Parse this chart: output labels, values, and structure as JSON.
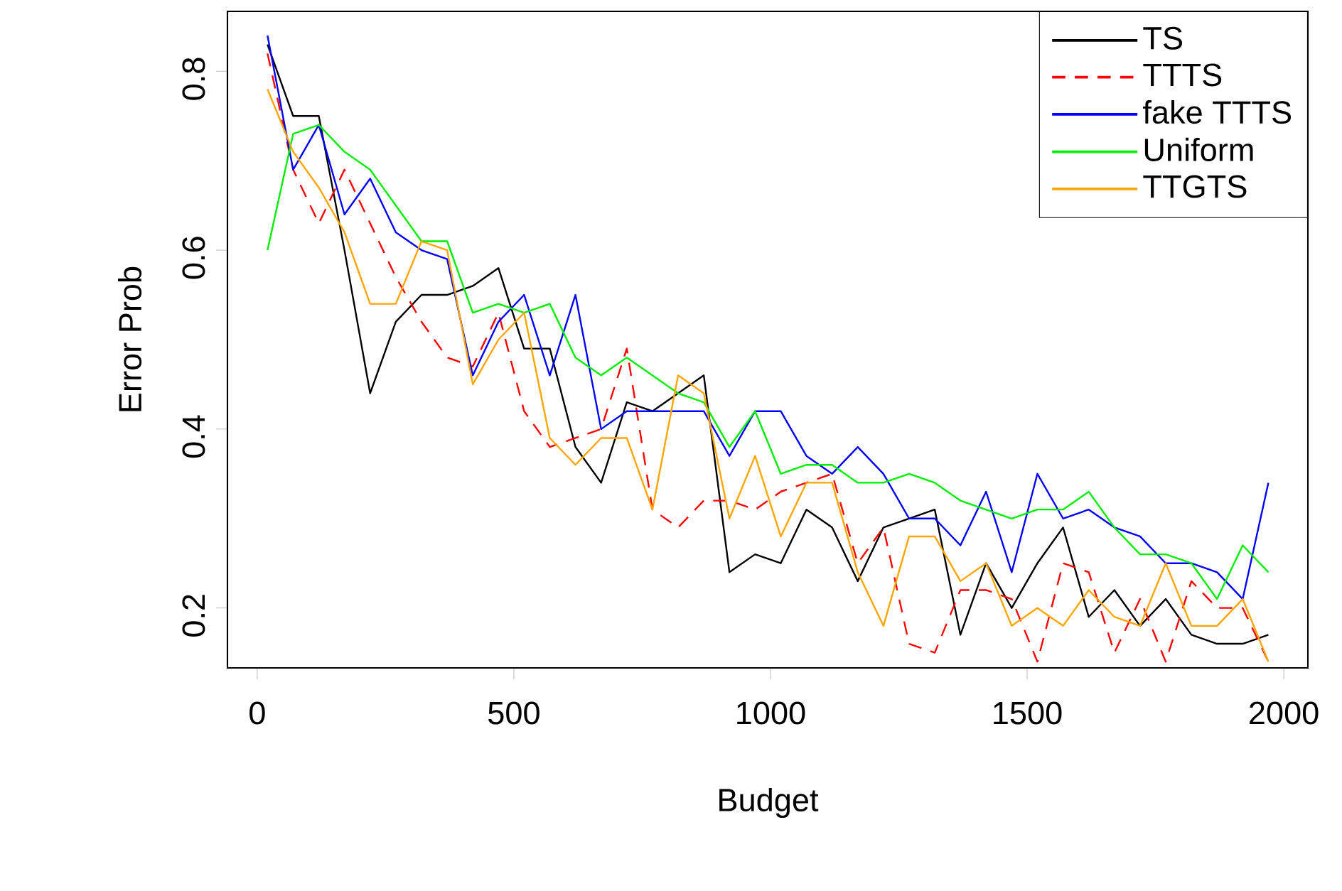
{
  "chart_data": {
    "type": "line",
    "xlabel": "Budget",
    "ylabel": "Error Prob",
    "x": [
      20,
      70,
      120,
      170,
      220,
      270,
      320,
      370,
      420,
      470,
      520,
      570,
      620,
      670,
      720,
      770,
      820,
      870,
      920,
      970,
      1020,
      1070,
      1120,
      1170,
      1220,
      1270,
      1320,
      1370,
      1420,
      1470,
      1520,
      1570,
      1620,
      1670,
      1720,
      1770,
      1820,
      1870,
      1920,
      1970
    ],
    "series": [
      {
        "name": "TS",
        "color": "#000000",
        "line_style": "solid",
        "values": [
          0.83,
          0.75,
          0.75,
          0.6,
          0.44,
          0.52,
          0.55,
          0.55,
          0.56,
          0.58,
          0.49,
          0.49,
          0.38,
          0.34,
          0.43,
          0.42,
          0.44,
          0.46,
          0.24,
          0.26,
          0.25,
          0.31,
          0.29,
          0.23,
          0.29,
          0.3,
          0.31,
          0.17,
          0.25,
          0.2,
          0.25,
          0.29,
          0.19,
          0.22,
          0.18,
          0.21,
          0.17,
          0.16,
          0.16,
          0.17
        ]
      },
      {
        "name": "TTTS",
        "color": "#ff0000",
        "line_style": "dashed",
        "values": [
          0.82,
          0.69,
          0.63,
          0.69,
          0.63,
          0.57,
          0.52,
          0.48,
          0.47,
          0.53,
          0.42,
          0.38,
          0.39,
          0.4,
          0.49,
          0.31,
          0.29,
          0.32,
          0.32,
          0.31,
          0.33,
          0.34,
          0.35,
          0.25,
          0.29,
          0.16,
          0.15,
          0.22,
          0.22,
          0.21,
          0.14,
          0.25,
          0.24,
          0.15,
          0.21,
          0.14,
          0.23,
          0.2,
          0.2,
          0.14
        ]
      },
      {
        "name": "fake TTTS",
        "color": "#0000ff",
        "line_style": "solid",
        "values": [
          0.84,
          0.69,
          0.74,
          0.64,
          0.68,
          0.62,
          0.6,
          0.59,
          0.46,
          0.52,
          0.55,
          0.46,
          0.55,
          0.4,
          0.42,
          0.42,
          0.42,
          0.42,
          0.37,
          0.42,
          0.42,
          0.37,
          0.35,
          0.38,
          0.35,
          0.3,
          0.3,
          0.27,
          0.33,
          0.24,
          0.35,
          0.3,
          0.31,
          0.29,
          0.28,
          0.25,
          0.25,
          0.24,
          0.21,
          0.34
        ]
      },
      {
        "name": "Uniform",
        "color": "#00ee00",
        "line_style": "solid",
        "values": [
          0.6,
          0.73,
          0.74,
          0.71,
          0.69,
          0.65,
          0.61,
          0.61,
          0.53,
          0.54,
          0.53,
          0.54,
          0.48,
          0.46,
          0.48,
          0.46,
          0.44,
          0.43,
          0.38,
          0.42,
          0.35,
          0.36,
          0.36,
          0.34,
          0.34,
          0.35,
          0.34,
          0.32,
          0.31,
          0.3,
          0.31,
          0.31,
          0.33,
          0.29,
          0.26,
          0.26,
          0.25,
          0.21,
          0.27,
          0.24
        ]
      },
      {
        "name": "TTGTS",
        "color": "#ffa500",
        "line_style": "solid",
        "values": [
          0.78,
          0.71,
          0.67,
          0.62,
          0.54,
          0.54,
          0.61,
          0.6,
          0.45,
          0.5,
          0.53,
          0.39,
          0.36,
          0.39,
          0.39,
          0.31,
          0.46,
          0.44,
          0.3,
          0.37,
          0.28,
          0.34,
          0.34,
          0.24,
          0.18,
          0.28,
          0.28,
          0.23,
          0.25,
          0.18,
          0.2,
          0.18,
          0.22,
          0.19,
          0.18,
          0.25,
          0.18,
          0.18,
          0.21,
          0.14
        ]
      }
    ],
    "xlim": [
      -58,
      2047
    ],
    "ylim": [
      0.133,
      0.867
    ],
    "xticks": [
      0,
      500,
      1000,
      1500,
      2000
    ],
    "yticks": [
      0.2,
      0.4,
      0.6,
      0.8
    ],
    "legend": "top right",
    "grid": false,
    "marker": "none"
  }
}
